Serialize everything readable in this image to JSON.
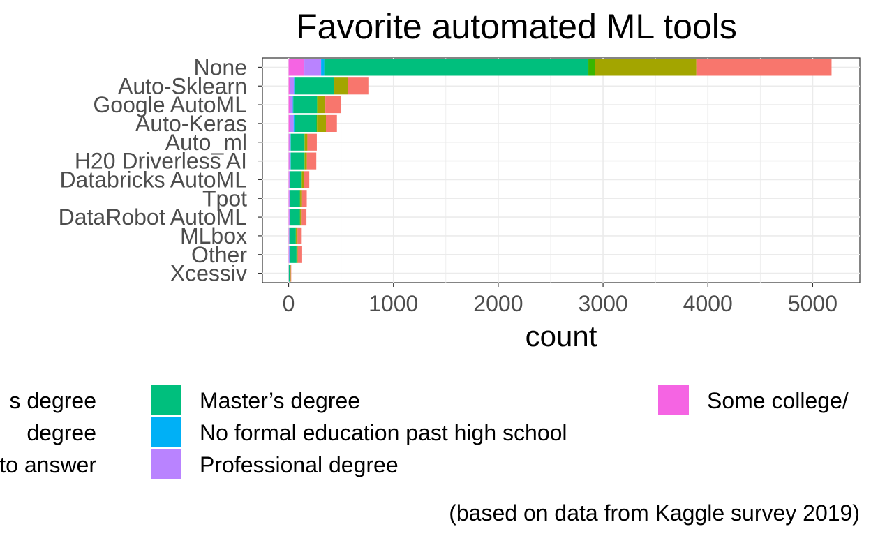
{
  "chart_data": {
    "type": "bar",
    "orientation": "horizontal",
    "stacked": true,
    "title": "Favorite automated ML tools",
    "xlabel": "count",
    "ylabel": "",
    "caption": "(based on data from Kaggle survey 2019)",
    "xlim": [
      -250,
      5450
    ],
    "xticks": [
      0,
      1000,
      2000,
      3000,
      4000,
      5000
    ],
    "grid": true,
    "legend_position": "bottom",
    "categories": [
      "None",
      "Auto-Sklearn",
      "Google AutoML",
      "Auto-Keras",
      "Auto_ml",
      "H20 Driverless AI",
      "Databricks AutoML",
      "Tpot",
      "DataRobot AutoML",
      "MLbox",
      "Other",
      "Xcessiv"
    ],
    "series": [
      {
        "name": "Some college/university study without earning a bachelor's degree",
        "color": "#F564E3",
        "values": [
          150,
          12,
          10,
          10,
          6,
          6,
          4,
          4,
          4,
          3,
          3,
          1
        ]
      },
      {
        "name": "Professional degree",
        "color": "#B983FF",
        "values": [
          160,
          40,
          30,
          38,
          12,
          12,
          8,
          6,
          6,
          4,
          5,
          1
        ]
      },
      {
        "name": "No formal education past high school",
        "color": "#00B0F6",
        "values": [
          30,
          8,
          5,
          8,
          3,
          3,
          2,
          2,
          2,
          1,
          2,
          0
        ]
      },
      {
        "name": "Master's degree",
        "color": "#00BF7D",
        "values": [
          2520,
          370,
          225,
          210,
          130,
          130,
          110,
          95,
          95,
          60,
          65,
          15
        ]
      },
      {
        "name": "I prefer not to answer",
        "color": "#39B600",
        "values": [
          60,
          6,
          5,
          5,
          3,
          3,
          3,
          3,
          3,
          2,
          2,
          0
        ]
      },
      {
        "name": "Doctoral degree",
        "color": "#A3A500",
        "values": [
          970,
          130,
          75,
          85,
          25,
          20,
          20,
          18,
          15,
          15,
          10,
          3
        ]
      },
      {
        "name": "Bachelor's degree",
        "color": "#F8766D",
        "values": [
          1290,
          195,
          150,
          105,
          90,
          90,
          50,
          45,
          45,
          40,
          42,
          5
        ]
      }
    ],
    "legend": {
      "columns": [
        [
          "Bachelor's degree",
          "Doctoral degree",
          "I prefer not to answer"
        ],
        [
          "Master’s degree",
          "No formal education past high school",
          "Professional degree"
        ],
        [
          "Some college/university study without earning a bachelor's degree"
        ]
      ],
      "visible_text": [
        [
          "s degree",
          "degree",
          "ot to answer"
        ],
        [
          "Master’s degree",
          "No formal education past high school",
          "Professional degree"
        ],
        [
          "Some college/"
        ]
      ]
    }
  }
}
